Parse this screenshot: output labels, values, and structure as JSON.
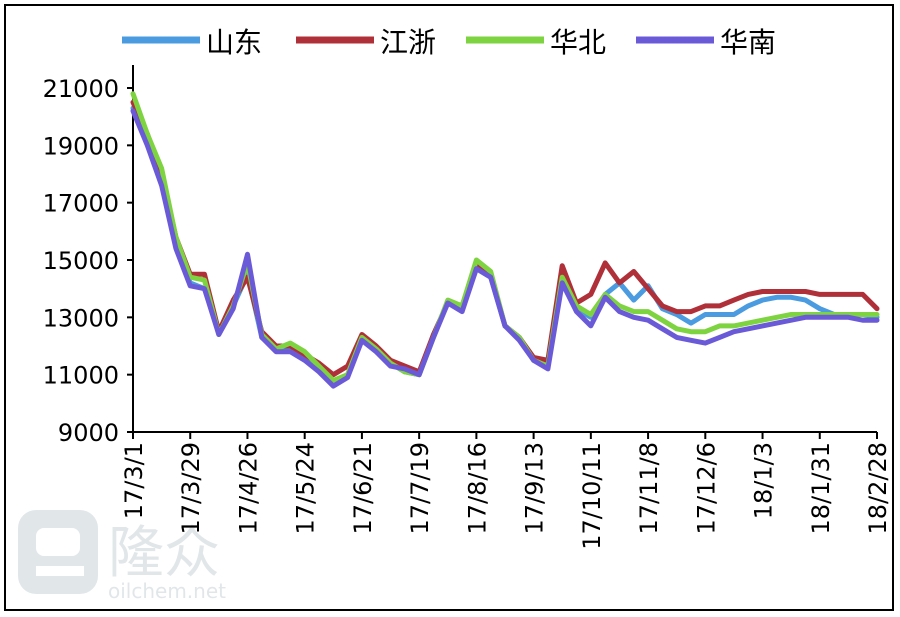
{
  "chart_data": {
    "type": "line",
    "title": "",
    "xlabel": "",
    "ylabel": "",
    "ylim": [
      9000,
      21000
    ],
    "yticks": [
      "21000",
      "19000",
      "17000",
      "15000",
      "13000",
      "11000",
      "9000"
    ],
    "ytick_values": [
      21000,
      19000,
      17000,
      15000,
      13000,
      11000,
      9000
    ],
    "xticks": [
      "17/3/1",
      "17/3/29",
      "17/4/26",
      "17/5/24",
      "17/6/21",
      "17/7/19",
      "17/8/16",
      "17/9/13",
      "17/10/11",
      "17/11/8",
      "17/12/6",
      "18/1/3",
      "18/1/31",
      "18/2/28"
    ],
    "x_dates": [
      "2017-03-01",
      "2017-03-08",
      "2017-03-15",
      "2017-03-22",
      "2017-03-29",
      "2017-04-05",
      "2017-04-12",
      "2017-04-19",
      "2017-04-26",
      "2017-05-03",
      "2017-05-10",
      "2017-05-17",
      "2017-05-24",
      "2017-05-31",
      "2017-06-07",
      "2017-06-14",
      "2017-06-21",
      "2017-06-28",
      "2017-07-05",
      "2017-07-12",
      "2017-07-19",
      "2017-07-26",
      "2017-08-02",
      "2017-08-09",
      "2017-08-16",
      "2017-08-23",
      "2017-08-30",
      "2017-09-06",
      "2017-09-13",
      "2017-09-20",
      "2017-09-27",
      "2017-10-04",
      "2017-10-11",
      "2017-10-18",
      "2017-10-25",
      "2017-11-01",
      "2017-11-08",
      "2017-11-15",
      "2017-11-22",
      "2017-11-29",
      "2017-12-06",
      "2017-12-13",
      "2017-12-20",
      "2017-12-27",
      "2018-01-03",
      "2018-01-10",
      "2018-01-17",
      "2018-01-24",
      "2018-01-31",
      "2018-02-07",
      "2018-02-14",
      "2018-02-21",
      "2018-02-28"
    ],
    "grid": false,
    "legend_position": "top",
    "series": [
      {
        "name": "山东",
        "color": "#4a9be0",
        "values": [
          20300,
          19200,
          17800,
          15500,
          14200,
          14000,
          12500,
          13400,
          14500,
          12300,
          11900,
          11900,
          11600,
          11200,
          10700,
          11000,
          12200,
          11800,
          11400,
          11100,
          11000,
          12400,
          13500,
          13300,
          14700,
          14400,
          12700,
          12300,
          11500,
          11300,
          14400,
          13300,
          13000,
          13800,
          14200,
          13600,
          14100,
          13300,
          13100,
          12800,
          13100,
          13100,
          13100,
          13400,
          13600,
          13700,
          13700,
          13600,
          13300,
          13100,
          13100,
          13100,
          13000
        ]
      },
      {
        "name": "江浙",
        "color": "#b0303a",
        "values": [
          20500,
          19400,
          18000,
          15800,
          14500,
          14500,
          12500,
          13600,
          14400,
          12500,
          12000,
          12000,
          11700,
          11400,
          11000,
          11300,
          12400,
          12000,
          11500,
          11300,
          11100,
          12400,
          13500,
          13400,
          14800,
          14500,
          12700,
          12300,
          11600,
          11500,
          14800,
          13500,
          13800,
          14900,
          14200,
          14600,
          14000,
          13400,
          13200,
          13200,
          13400,
          13400,
          13600,
          13800,
          13900,
          13900,
          13900,
          13900,
          13800,
          13800,
          13800,
          13800,
          13300
        ]
      },
      {
        "name": "华北",
        "color": "#7ed340",
        "values": [
          20800,
          19400,
          18200,
          15800,
          14400,
          14300,
          12400,
          13400,
          14900,
          12400,
          11900,
          12100,
          11800,
          11300,
          10800,
          11000,
          12300,
          11900,
          11400,
          11100,
          11000,
          12300,
          13600,
          13400,
          15000,
          14600,
          12700,
          12300,
          11500,
          11300,
          14400,
          13400,
          13100,
          13800,
          13400,
          13200,
          13200,
          12900,
          12600,
          12500,
          12500,
          12700,
          12700,
          12800,
          12900,
          13000,
          13100,
          13100,
          13100,
          13100,
          13100,
          13100,
          13100
        ]
      },
      {
        "name": "华南",
        "color": "#6a5ad8",
        "values": [
          20200,
          19000,
          17600,
          15400,
          14100,
          14000,
          12400,
          13300,
          15200,
          12300,
          11800,
          11800,
          11500,
          11100,
          10600,
          10900,
          12200,
          11800,
          11300,
          11200,
          11000,
          12300,
          13500,
          13200,
          14700,
          14400,
          12700,
          12200,
          11500,
          11200,
          14200,
          13200,
          12700,
          13700,
          13200,
          13000,
          12900,
          12600,
          12300,
          12200,
          12100,
          12300,
          12500,
          12600,
          12700,
          12800,
          12900,
          13000,
          13000,
          13000,
          13000,
          12900,
          12900
        ]
      }
    ]
  },
  "watermark": {
    "brand": "隆众",
    "site": "oilchem.net"
  }
}
